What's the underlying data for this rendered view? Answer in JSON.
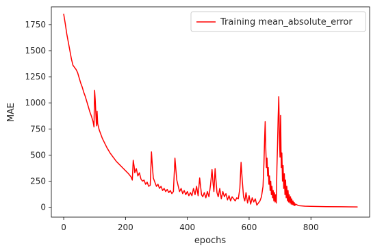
{
  "chart_data": {
    "type": "line",
    "title": "",
    "xlabel": "epochs",
    "ylabel": "MAE",
    "xlim": [
      -40,
      990
    ],
    "ylim": [
      -95,
      1920
    ],
    "x_ticks": [
      0,
      200,
      400,
      600,
      800
    ],
    "y_ticks": [
      0,
      250,
      500,
      750,
      1000,
      1250,
      1500,
      1750
    ],
    "x_tick_labels": [
      "0",
      "200",
      "400",
      "600",
      "800"
    ],
    "y_tick_labels": [
      "0",
      "250",
      "500",
      "750",
      "1000",
      "1250",
      "1500",
      "1750"
    ],
    "grid": false,
    "legend": {
      "position": "top-right",
      "entries": [
        "Training mean_absolute_error"
      ]
    },
    "series": [
      {
        "name": "Training mean_absolute_error",
        "color": "#ff0000",
        "points": [
          [
            0,
            1850
          ],
          [
            5,
            1760
          ],
          [
            10,
            1660
          ],
          [
            15,
            1580
          ],
          [
            20,
            1500
          ],
          [
            25,
            1420
          ],
          [
            30,
            1360
          ],
          [
            35,
            1340
          ],
          [
            40,
            1320
          ],
          [
            45,
            1290
          ],
          [
            50,
            1240
          ],
          [
            55,
            1190
          ],
          [
            60,
            1150
          ],
          [
            65,
            1100
          ],
          [
            70,
            1060
          ],
          [
            75,
            1010
          ],
          [
            80,
            960
          ],
          [
            85,
            910
          ],
          [
            90,
            870
          ],
          [
            95,
            820
          ],
          [
            98,
            770
          ],
          [
            100,
            1120
          ],
          [
            102,
            1030
          ],
          [
            104,
            900
          ],
          [
            106,
            780
          ],
          [
            108,
            920
          ],
          [
            110,
            800
          ],
          [
            115,
            740
          ],
          [
            120,
            700
          ],
          [
            125,
            660
          ],
          [
            130,
            630
          ],
          [
            140,
            570
          ],
          [
            150,
            520
          ],
          [
            160,
            480
          ],
          [
            170,
            440
          ],
          [
            180,
            410
          ],
          [
            190,
            380
          ],
          [
            200,
            350
          ],
          [
            210,
            320
          ],
          [
            218,
            290
          ],
          [
            222,
            260
          ],
          [
            225,
            450
          ],
          [
            228,
            390
          ],
          [
            230,
            330
          ],
          [
            235,
            370
          ],
          [
            240,
            300
          ],
          [
            245,
            330
          ],
          [
            250,
            270
          ],
          [
            255,
            250
          ],
          [
            260,
            260
          ],
          [
            265,
            220
          ],
          [
            270,
            240
          ],
          [
            275,
            200
          ],
          [
            280,
            210
          ],
          [
            284,
            530
          ],
          [
            287,
            390
          ],
          [
            290,
            280
          ],
          [
            295,
            240
          ],
          [
            300,
            200
          ],
          [
            305,
            220
          ],
          [
            310,
            180
          ],
          [
            315,
            200
          ],
          [
            320,
            160
          ],
          [
            325,
            180
          ],
          [
            330,
            150
          ],
          [
            335,
            170
          ],
          [
            340,
            140
          ],
          [
            345,
            160
          ],
          [
            350,
            130
          ],
          [
            355,
            150
          ],
          [
            360,
            470
          ],
          [
            363,
            360
          ],
          [
            366,
            260
          ],
          [
            370,
            210
          ],
          [
            375,
            150
          ],
          [
            380,
            180
          ],
          [
            385,
            130
          ],
          [
            390,
            160
          ],
          [
            395,
            120
          ],
          [
            400,
            150
          ],
          [
            405,
            110
          ],
          [
            410,
            140
          ],
          [
            415,
            110
          ],
          [
            420,
            180
          ],
          [
            425,
            120
          ],
          [
            430,
            200
          ],
          [
            435,
            110
          ],
          [
            440,
            280
          ],
          [
            443,
            200
          ],
          [
            446,
            120
          ],
          [
            450,
            100
          ],
          [
            455,
            140
          ],
          [
            460,
            90
          ],
          [
            465,
            150
          ],
          [
            470,
            100
          ],
          [
            475,
            210
          ],
          [
            480,
            360
          ],
          [
            483,
            240
          ],
          [
            486,
            150
          ],
          [
            490,
            370
          ],
          [
            493,
            250
          ],
          [
            496,
            140
          ],
          [
            500,
            100
          ],
          [
            505,
            180
          ],
          [
            510,
            80
          ],
          [
            515,
            150
          ],
          [
            520,
            100
          ],
          [
            525,
            130
          ],
          [
            530,
            70
          ],
          [
            535,
            110
          ],
          [
            540,
            60
          ],
          [
            545,
            100
          ],
          [
            550,
            80
          ],
          [
            555,
            60
          ],
          [
            560,
            90
          ],
          [
            565,
            80
          ],
          [
            570,
            180
          ],
          [
            574,
            430
          ],
          [
            578,
            250
          ],
          [
            582,
            100
          ],
          [
            586,
            60
          ],
          [
            590,
            140
          ],
          [
            595,
            40
          ],
          [
            600,
            110
          ],
          [
            605,
            30
          ],
          [
            610,
            90
          ],
          [
            615,
            50
          ],
          [
            620,
            80
          ],
          [
            625,
            20
          ],
          [
            630,
            40
          ],
          [
            635,
            60
          ],
          [
            640,
            100
          ],
          [
            645,
            200
          ],
          [
            648,
            420
          ],
          [
            650,
            640
          ],
          [
            652,
            820
          ],
          [
            654,
            560
          ],
          [
            656,
            380
          ],
          [
            658,
            470
          ],
          [
            660,
            300
          ],
          [
            662,
            380
          ],
          [
            664,
            220
          ],
          [
            666,
            300
          ],
          [
            668,
            160
          ],
          [
            670,
            250
          ],
          [
            672,
            120
          ],
          [
            674,
            200
          ],
          [
            676,
            90
          ],
          [
            678,
            160
          ],
          [
            680,
            60
          ],
          [
            682,
            140
          ],
          [
            684,
            50
          ],
          [
            686,
            120
          ],
          [
            688,
            40
          ],
          [
            690,
            380
          ],
          [
            692,
            600
          ],
          [
            694,
            860
          ],
          [
            696,
            1060
          ],
          [
            698,
            700
          ],
          [
            700,
            480
          ],
          [
            702,
            880
          ],
          [
            704,
            380
          ],
          [
            706,
            520
          ],
          [
            708,
            250
          ],
          [
            710,
            400
          ],
          [
            712,
            180
          ],
          [
            714,
            320
          ],
          [
            716,
            120
          ],
          [
            718,
            260
          ],
          [
            720,
            90
          ],
          [
            722,
            200
          ],
          [
            724,
            60
          ],
          [
            726,
            160
          ],
          [
            728,
            50
          ],
          [
            730,
            120
          ],
          [
            732,
            40
          ],
          [
            734,
            100
          ],
          [
            736,
            30
          ],
          [
            738,
            80
          ],
          [
            740,
            25
          ],
          [
            742,
            60
          ],
          [
            744,
            20
          ],
          [
            746,
            45
          ],
          [
            748,
            15
          ],
          [
            750,
            30
          ],
          [
            760,
            15
          ],
          [
            780,
            10
          ],
          [
            800,
            8
          ],
          [
            850,
            5
          ],
          [
            900,
            4
          ],
          [
            950,
            3
          ]
        ]
      }
    ]
  }
}
